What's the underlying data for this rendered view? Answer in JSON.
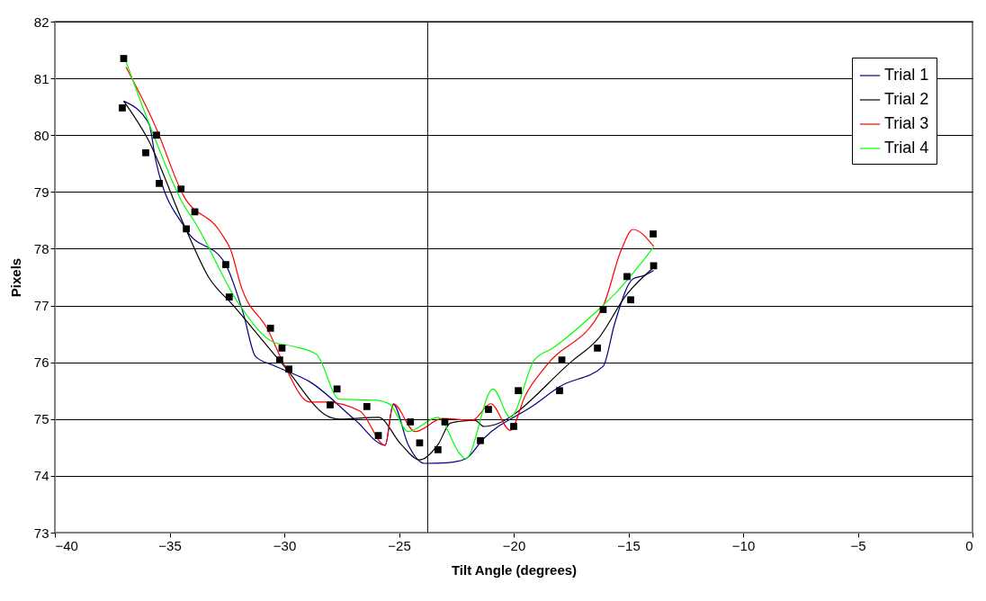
{
  "chart_data": {
    "type": "line",
    "xlabel": "Tilt Angle (degrees)",
    "ylabel": "Pixels",
    "xlim": [
      -40,
      0
    ],
    "ylim": [
      73,
      82
    ],
    "xticks": [
      -40,
      -35,
      -30,
      -25,
      -20,
      -15,
      -10,
      -5,
      0
    ],
    "yticks": [
      73,
      74,
      75,
      76,
      77,
      78,
      79,
      80,
      81,
      82
    ],
    "grid": "y",
    "legend": "top right",
    "ref_lines": [
      {
        "axis": "x",
        "value": -23.75
      }
    ],
    "series": [
      {
        "name": "Trial 1",
        "color": "#000080",
        "x": [
          -37.0,
          -35.9,
          -35.6,
          -34.3,
          -32.55,
          -31.8,
          -31.25,
          -30.5,
          -30.1,
          -28.9,
          -26.9,
          -25.6,
          -25.25,
          -24.6,
          -23.9,
          -22.9,
          -22.1,
          -21.3,
          -19.1,
          -18.0,
          -16.1,
          -15.6,
          -14.8,
          -14.3,
          -13.9
        ],
        "values": [
          80.6,
          80.2,
          79.55,
          78.35,
          77.72,
          76.88,
          76.1,
          75.95,
          75.88,
          75.66,
          74.98,
          74.54,
          75.26,
          74.55,
          74.22,
          74.23,
          74.3,
          74.66,
          75.25,
          75.57,
          75.93,
          76.68,
          77.47,
          77.53,
          77.62
        ]
      },
      {
        "name": "Trial 2",
        "color": "#000000",
        "x": [
          -37.0,
          -35.96,
          -34.3,
          -33.3,
          -32.2,
          -30.0,
          -28.0,
          -27.6,
          -25.9,
          -24.9,
          -24.1,
          -23.3,
          -22.75,
          -21.7,
          -21.3,
          -17.4,
          -16.35,
          -15.06,
          -13.9
        ],
        "values": [
          80.6,
          79.94,
          78.35,
          77.5,
          76.99,
          75.93,
          75.03,
          75.0,
          75.03,
          74.55,
          74.28,
          74.55,
          74.93,
          74.98,
          74.87,
          76.04,
          76.4,
          77.2,
          77.67
        ]
      },
      {
        "name": "Trial 3",
        "color": "#ff0000",
        "x": [
          -36.9,
          -35.6,
          -34.4,
          -32.8,
          -32.3,
          -31.9,
          -30.7,
          -30.0,
          -28.9,
          -28.2,
          -26.7,
          -25.6,
          -25.25,
          -24.3,
          -23.1,
          -21.8,
          -21.0,
          -20.15,
          -19.5,
          -18.6,
          -16.1,
          -15.3,
          -14.8,
          -13.9
        ],
        "values": [
          81.2,
          80.14,
          78.94,
          78.3,
          77.94,
          77.36,
          76.56,
          75.95,
          75.3,
          75.3,
          75.14,
          74.54,
          75.27,
          74.78,
          75.01,
          74.98,
          75.27,
          74.8,
          75.41,
          75.93,
          76.99,
          77.99,
          78.34,
          78.04
        ]
      },
      {
        "name": "Trial 4",
        "color": "#00ff00",
        "x": [
          -36.9,
          -35.6,
          -34.4,
          -33.9,
          -32.0,
          -30.5,
          -29.6,
          -28.6,
          -27.6,
          -26.0,
          -25.4,
          -24.6,
          -23.3,
          -22.35,
          -22.1,
          -20.9,
          -20.15,
          -19.1,
          -18.3,
          -16.35,
          -15.6,
          -13.9
        ],
        "values": [
          81.3,
          79.9,
          78.78,
          78.47,
          77.04,
          76.36,
          76.28,
          76.14,
          75.35,
          75.33,
          75.26,
          74.78,
          75.03,
          74.39,
          74.3,
          75.53,
          75.03,
          76.04,
          76.25,
          76.91,
          77.2,
          78.03
        ]
      },
      {
        "type": "scatter",
        "color": "#000000",
        "marker": "square",
        "x": [
          -37.0,
          -35.57,
          -34.5,
          -33.9,
          -32.55,
          -30.6,
          -30.1,
          -27.7,
          -26.4,
          -24.5,
          -23.0,
          -21.1,
          -19.8,
          -17.9,
          -16.1,
          -15.06,
          -13.92
        ],
        "values": [
          81.35,
          80.0,
          79.05,
          78.65,
          77.72,
          76.6,
          76.25,
          75.53,
          75.22,
          74.95,
          74.95,
          75.17,
          75.5,
          76.04,
          76.93,
          77.51,
          78.26
        ]
      },
      {
        "type": "scatter",
        "color": "#000000",
        "marker": "square",
        "x": [
          -37.06,
          -36.04,
          -35.45,
          -34.27,
          -32.4,
          -30.2,
          -29.8,
          -28.0,
          -25.9,
          -24.1,
          -23.3,
          -21.45,
          -20.0,
          -18.0,
          -16.35,
          -14.9,
          -13.9
        ],
        "values": [
          80.48,
          79.69,
          79.15,
          78.35,
          77.15,
          76.04,
          75.88,
          75.25,
          74.71,
          74.58,
          74.46,
          74.62,
          74.87,
          75.5,
          76.25,
          77.1,
          77.7
        ]
      }
    ]
  }
}
